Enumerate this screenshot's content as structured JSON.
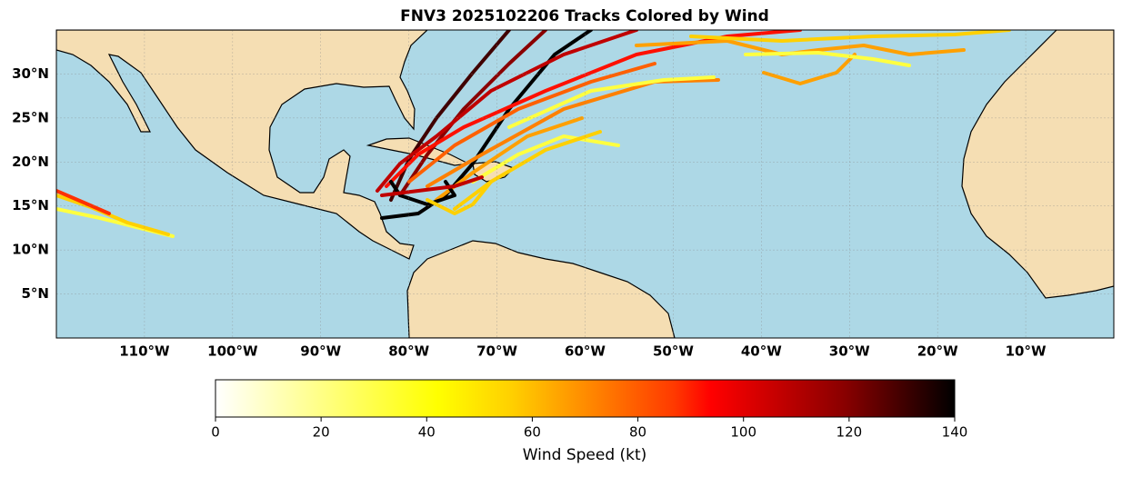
{
  "chart_data": {
    "type": "track-map",
    "title": "FNV3 2025102206 Tracks Colored by Wind",
    "xlim": [
      -120,
      0
    ],
    "ylim": [
      0,
      35
    ],
    "yticks": [
      {
        "value": 5,
        "label": "5°N"
      },
      {
        "value": 10,
        "label": "10°N"
      },
      {
        "value": 15,
        "label": "15°N"
      },
      {
        "value": 20,
        "label": "20°N"
      },
      {
        "value": 25,
        "label": "25°N"
      },
      {
        "value": 30,
        "label": "30°N"
      }
    ],
    "xticks": [
      {
        "value": -110,
        "label": "110°W"
      },
      {
        "value": -100,
        "label": "100°W"
      },
      {
        "value": -90,
        "label": "90°W"
      },
      {
        "value": -80,
        "label": "80°W"
      },
      {
        "value": -70,
        "label": "70°W"
      },
      {
        "value": -60,
        "label": "60°W"
      },
      {
        "value": -50,
        "label": "50°W"
      },
      {
        "value": -40,
        "label": "40°W"
      },
      {
        "value": -30,
        "label": "30°W"
      },
      {
        "value": -20,
        "label": "20°W"
      },
      {
        "value": -10,
        "label": "10°W"
      }
    ],
    "grid": true,
    "colorbar": {
      "label": "Wind Speed (kt)",
      "lim": [
        0,
        140
      ],
      "ticks": [
        0,
        20,
        40,
        60,
        80,
        100,
        120,
        140
      ]
    }
  }
}
